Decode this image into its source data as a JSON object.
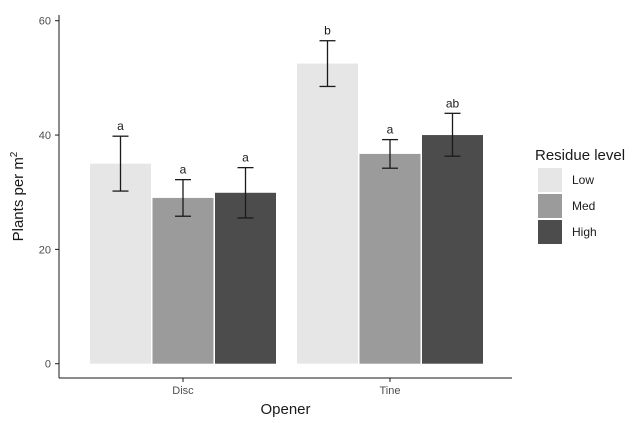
{
  "chart_data": {
    "type": "bar",
    "categories": [
      "Disc",
      "Tine"
    ],
    "series": [
      {
        "name": "Low",
        "color": "#e6e6e6",
        "values": [
          35,
          52.5
        ],
        "error": [
          [
            30.2,
            39.8
          ],
          [
            48.5,
            56.5
          ]
        ],
        "labels": [
          "a",
          "b"
        ]
      },
      {
        "name": "Med",
        "color": "#9b9b9b",
        "values": [
          29,
          36.7
        ],
        "error": [
          [
            25.8,
            32.2
          ],
          [
            34.2,
            39.2
          ]
        ],
        "labels": [
          "a",
          "a"
        ]
      },
      {
        "name": "High",
        "color": "#4c4c4c",
        "values": [
          29.9,
          40
        ],
        "error": [
          [
            25.5,
            34.3
          ],
          [
            36.3,
            43.8
          ]
        ],
        "labels": [
          "a",
          "ab"
        ]
      }
    ],
    "xlabel": "Opener",
    "ylabel_main": "Plants per m",
    "ylabel_sup": "2",
    "ylim": [
      -2.5,
      61
    ],
    "yticks": [
      0,
      20,
      40,
      60
    ],
    "grid": false,
    "legend": {
      "title": "Residue level",
      "position": "right"
    }
  }
}
